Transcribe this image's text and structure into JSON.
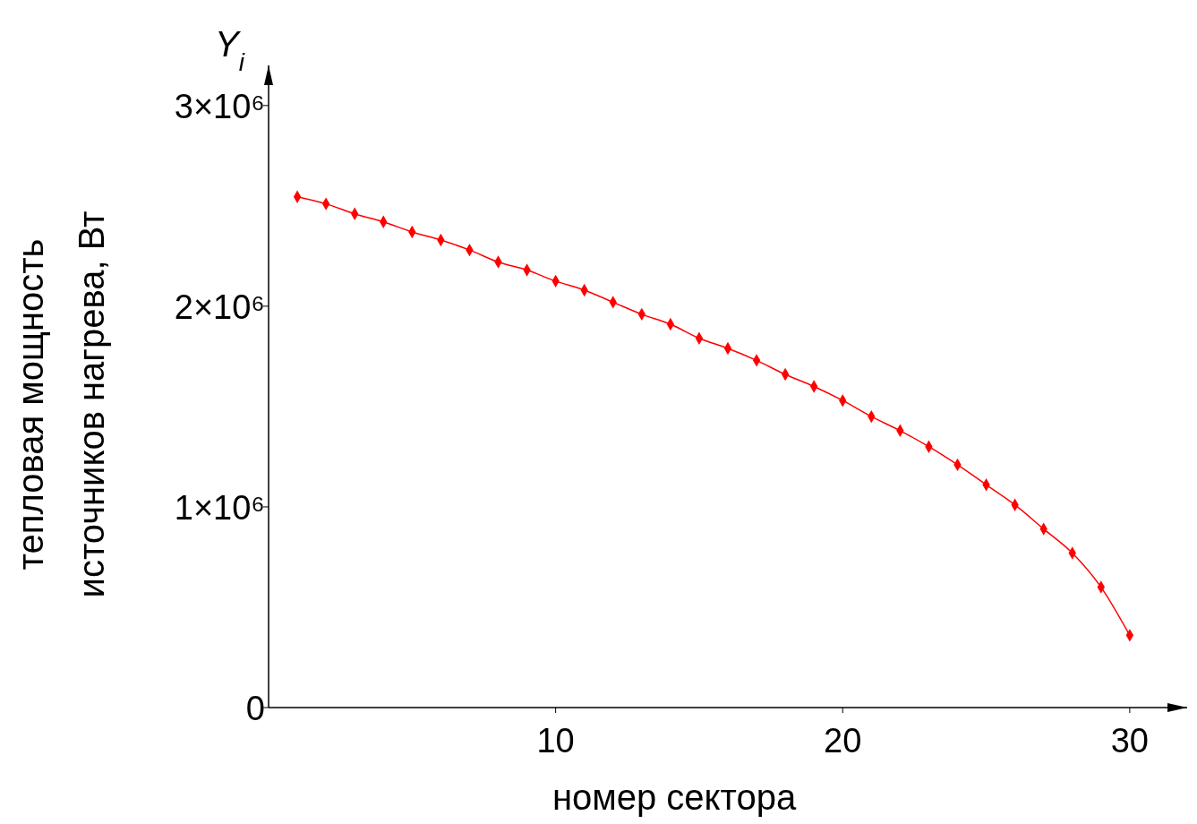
{
  "chart_data": {
    "type": "line",
    "xlabel": "номер сектора",
    "ylabel": "тепловая мощность\nисточников нагрева, Вт",
    "annotations": [
      "Y$_{i}$"
    ],
    "x": [
      1,
      2,
      3,
      4,
      5,
      6,
      7,
      8,
      9,
      10,
      11,
      12,
      13,
      14,
      15,
      16,
      17,
      18,
      19,
      20,
      21,
      22,
      23,
      24,
      25,
      26,
      27,
      28,
      29,
      30
    ],
    "series": [
      {
        "color": "#ff0000",
        "values": [
          2545000,
          2510000,
          2460000,
          2420000,
          2370000,
          2330000,
          2280000,
          2220000,
          2180000,
          2125000,
          2080000,
          2020000,
          1960000,
          1910000,
          1840000,
          1790000,
          1730000,
          1660000,
          1600000,
          1530000,
          1450000,
          1380000,
          1300000,
          1210000,
          1110000,
          1010000,
          890000,
          770000,
          600000,
          360000
        ]
      }
    ],
    "xlim": [
      0,
      32
    ],
    "xticks": [
      10,
      20,
      30
    ],
    "ylim": [
      0,
      3200000
    ],
    "yticks": [
      {
        "value": 0,
        "label": "0"
      },
      {
        "value": 1000000,
        "label": "1×10⁶"
      },
      {
        "value": 2000000,
        "label": "2×10⁶"
      },
      {
        "value": 3000000,
        "label": "3×10⁶"
      }
    ],
    "marker": "diamond",
    "grid": false
  }
}
